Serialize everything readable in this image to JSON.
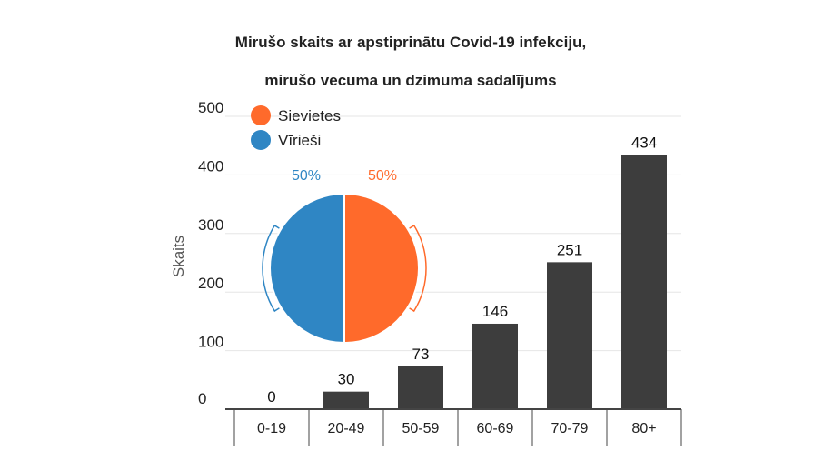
{
  "colors": {
    "bar": "#3d3d3d",
    "female": "#ff6a2b",
    "male": "#2f86c4",
    "grid": "#e6e6e6",
    "axis": "#444444"
  },
  "chart_data": [
    {
      "type": "bar",
      "title": "Mirušo skaits ar apstiprinātu Covid-19 infekciju,",
      "subtitle": "mirušo vecuma un dzimuma sadalījums",
      "xlabel": "",
      "ylabel": "Skaits",
      "categories": [
        "0-19",
        "20-49",
        "50-59",
        "60-69",
        "70-79",
        "80+"
      ],
      "values": [
        0,
        30,
        73,
        146,
        251,
        434
      ],
      "value_labels": [
        "0",
        "30",
        "73",
        "146",
        "251",
        "434"
      ],
      "ylim": [
        0,
        500
      ],
      "yticks": [
        0,
        100,
        200,
        300,
        400,
        500
      ],
      "ytick_labels": [
        "0",
        "100",
        "200",
        "300",
        "400",
        "500"
      ],
      "grid": true
    },
    {
      "type": "pie",
      "legend_position": "top-left",
      "slices": [
        {
          "name": "Sievietes",
          "value": 50,
          "label": "50%",
          "color": "#ff6a2b"
        },
        {
          "name": "Vīrieši",
          "value": 50,
          "label": "50%",
          "color": "#2f86c4"
        }
      ]
    }
  ]
}
